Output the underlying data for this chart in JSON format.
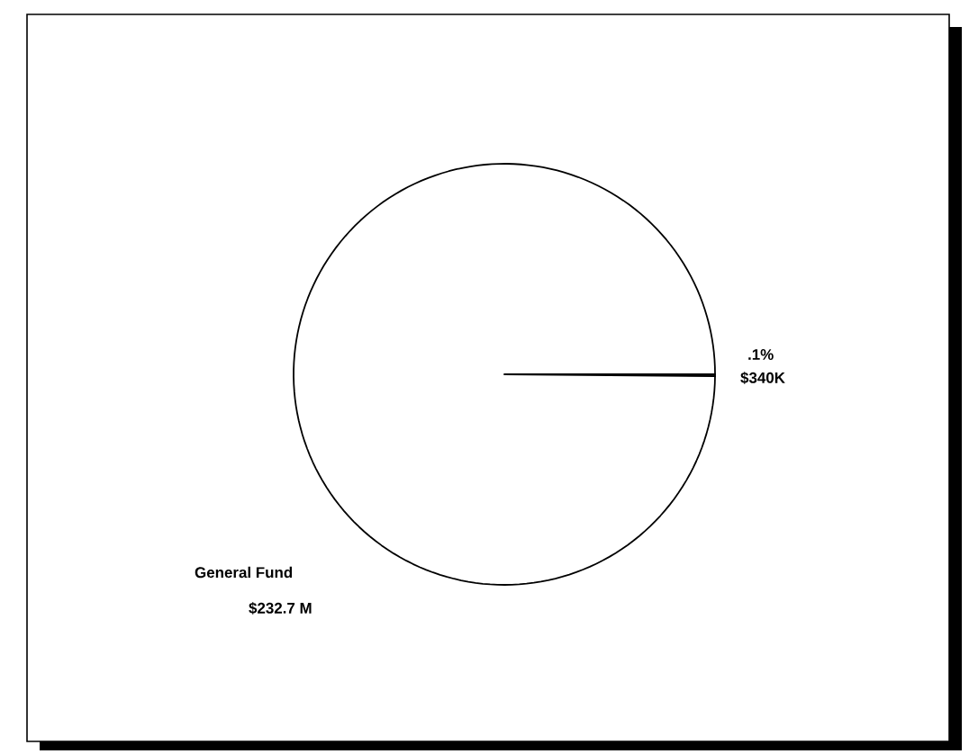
{
  "chart_data": {
    "type": "pie",
    "categories": [
      "General Fund",
      null
    ],
    "values": [
      232700000,
      340000
    ],
    "value_labels": [
      "$232.7 M",
      "$340K"
    ],
    "colors": [
      "#ffffff",
      "#ffffff"
    ],
    "annotations": [
      ".1%"
    ]
  }
}
